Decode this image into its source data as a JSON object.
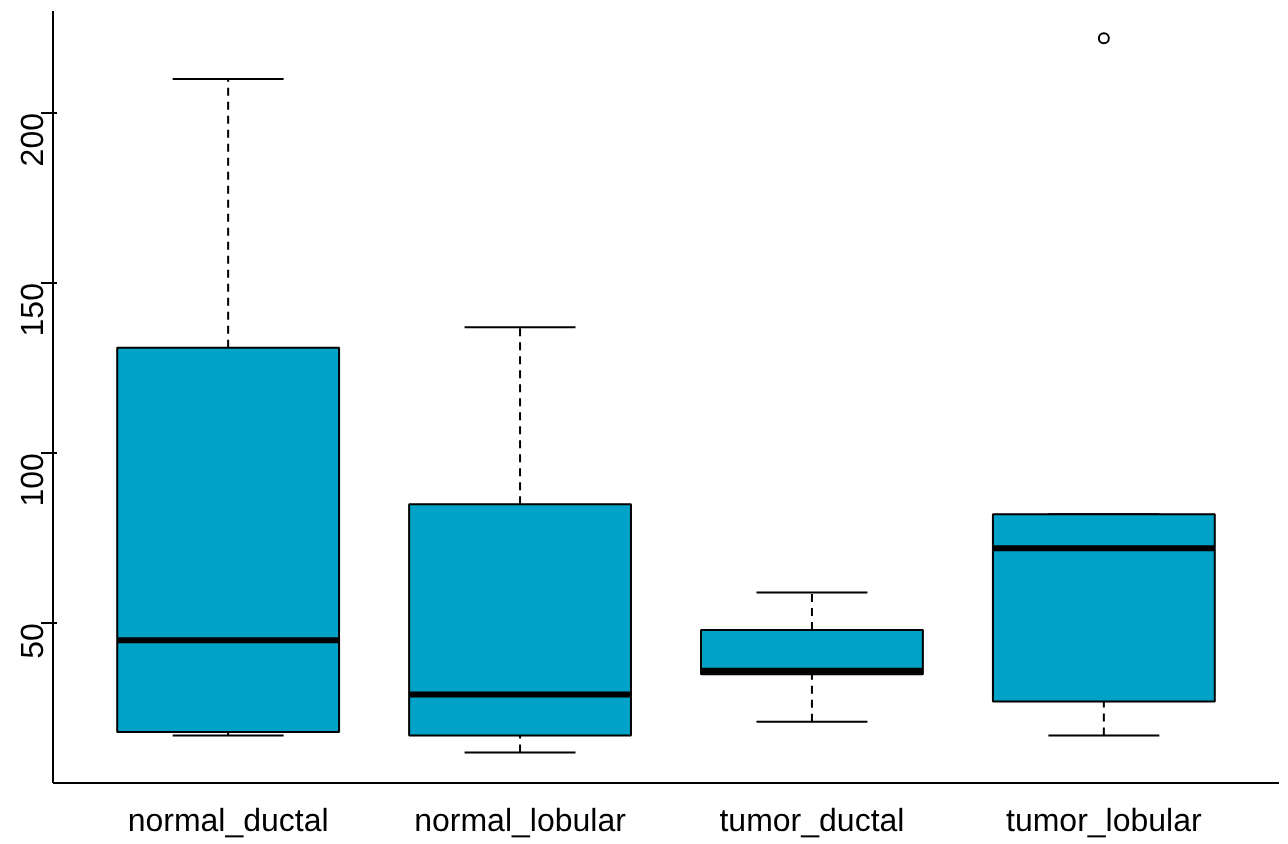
{
  "chart_data": {
    "type": "box",
    "categories": [
      "normal_ductal",
      "normal_lobular",
      "tumor_ductal",
      "tumor_lobular"
    ],
    "color": "#00a3c7",
    "boxes": [
      {
        "low": 17,
        "q1": 18,
        "median": 45,
        "q3": 131,
        "high": 210
      },
      {
        "low": 12,
        "q1": 17,
        "median": 29,
        "q3": 85,
        "high": 137
      },
      {
        "low": 21,
        "q1": 35,
        "median": 36,
        "q3": 48,
        "high": 59
      },
      {
        "low": 17,
        "q1": 27,
        "median": 72,
        "q3": 82,
        "high": 82,
        "outliers": [
          222
        ]
      }
    ],
    "ylim": [
      3,
      230
    ],
    "yticks": [
      50,
      100,
      150,
      200
    ],
    "grid": false
  }
}
